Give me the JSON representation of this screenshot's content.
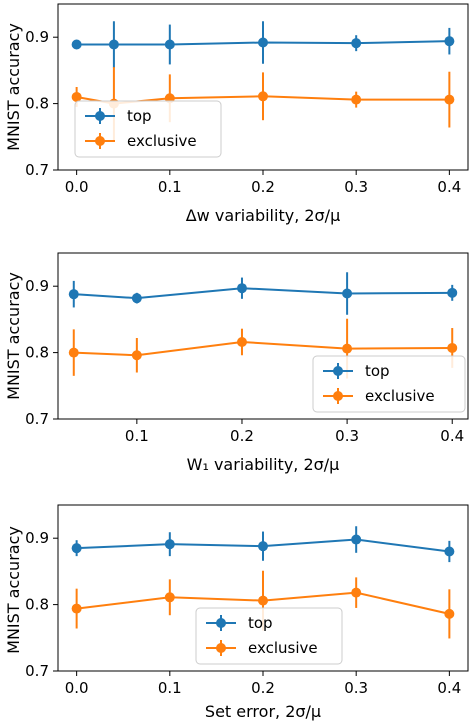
{
  "colors": {
    "top": "#1f77b4",
    "exclusive": "#ff7f0e"
  },
  "chart_data": [
    {
      "type": "line",
      "xlabel": "Δw variability, 2σ/μ",
      "ylabel": "MNIST accuracy",
      "xlim": [
        -0.02,
        0.42
      ],
      "ylim": [
        0.7,
        0.95
      ],
      "xticks": [
        0.0,
        0.1,
        0.2,
        0.3,
        0.4
      ],
      "xtick_labels": [
        "0.0",
        "0.1",
        "0.2",
        "0.3",
        "0.4"
      ],
      "yticks": [
        0.7,
        0.8,
        0.9
      ],
      "ytick_labels": [
        "0.7",
        "0.8",
        "0.9"
      ],
      "legend": "lower-left",
      "x": [
        0.0,
        0.04,
        0.1,
        0.2,
        0.3,
        0.4
      ],
      "series": [
        {
          "name": "top",
          "values": [
            0.889,
            0.889,
            0.889,
            0.892,
            0.891,
            0.894
          ],
          "errors": [
            0.005,
            0.035,
            0.03,
            0.032,
            0.012,
            0.02
          ]
        },
        {
          "name": "exclusive",
          "values": [
            0.81,
            0.8,
            0.808,
            0.811,
            0.806,
            0.806
          ],
          "errors": [
            0.015,
            0.055,
            0.036,
            0.036,
            0.012,
            0.042
          ]
        }
      ]
    },
    {
      "type": "line",
      "xlabel": "W₁ variability, 2σ/μ",
      "ylabel": "MNIST accuracy",
      "xlim": [
        0.025,
        0.415
      ],
      "ylim": [
        0.7,
        0.95
      ],
      "xticks": [
        0.1,
        0.2,
        0.3,
        0.4
      ],
      "xtick_labels": [
        "0.1",
        "0.2",
        "0.3",
        "0.4"
      ],
      "yticks": [
        0.7,
        0.8,
        0.9
      ],
      "ytick_labels": [
        "0.7",
        "0.8",
        "0.9"
      ],
      "legend": "lower-right",
      "x": [
        0.04,
        0.1,
        0.2,
        0.3,
        0.4
      ],
      "series": [
        {
          "name": "top",
          "values": [
            0.888,
            0.882,
            0.897,
            0.889,
            0.89
          ],
          "errors": [
            0.02,
            0.008,
            0.016,
            0.032,
            0.012
          ]
        },
        {
          "name": "exclusive",
          "values": [
            0.8,
            0.796,
            0.816,
            0.806,
            0.807
          ],
          "errors": [
            0.035,
            0.026,
            0.02,
            0.045,
            0.03
          ]
        }
      ]
    },
    {
      "type": "line",
      "xlabel": "Set error, 2σ/μ",
      "ylabel": "MNIST accuracy",
      "xlim": [
        -0.02,
        0.42
      ],
      "ylim": [
        0.7,
        0.95
      ],
      "xticks": [
        0.0,
        0.1,
        0.2,
        0.3,
        0.4
      ],
      "xtick_labels": [
        "0.0",
        "0.1",
        "0.2",
        "0.3",
        "0.4"
      ],
      "yticks": [
        0.7,
        0.8,
        0.9
      ],
      "ytick_labels": [
        "0.7",
        "0.8",
        "0.9"
      ],
      "legend": "lower-center",
      "x": [
        0.0,
        0.1,
        0.2,
        0.3,
        0.4
      ],
      "series": [
        {
          "name": "top",
          "values": [
            0.885,
            0.891,
            0.888,
            0.898,
            0.88
          ],
          "errors": [
            0.012,
            0.018,
            0.022,
            0.02,
            0.016
          ]
        },
        {
          "name": "exclusive",
          "values": [
            0.794,
            0.811,
            0.806,
            0.818,
            0.786
          ],
          "errors": [
            0.03,
            0.027,
            0.045,
            0.023,
            0.037
          ]
        }
      ]
    }
  ]
}
